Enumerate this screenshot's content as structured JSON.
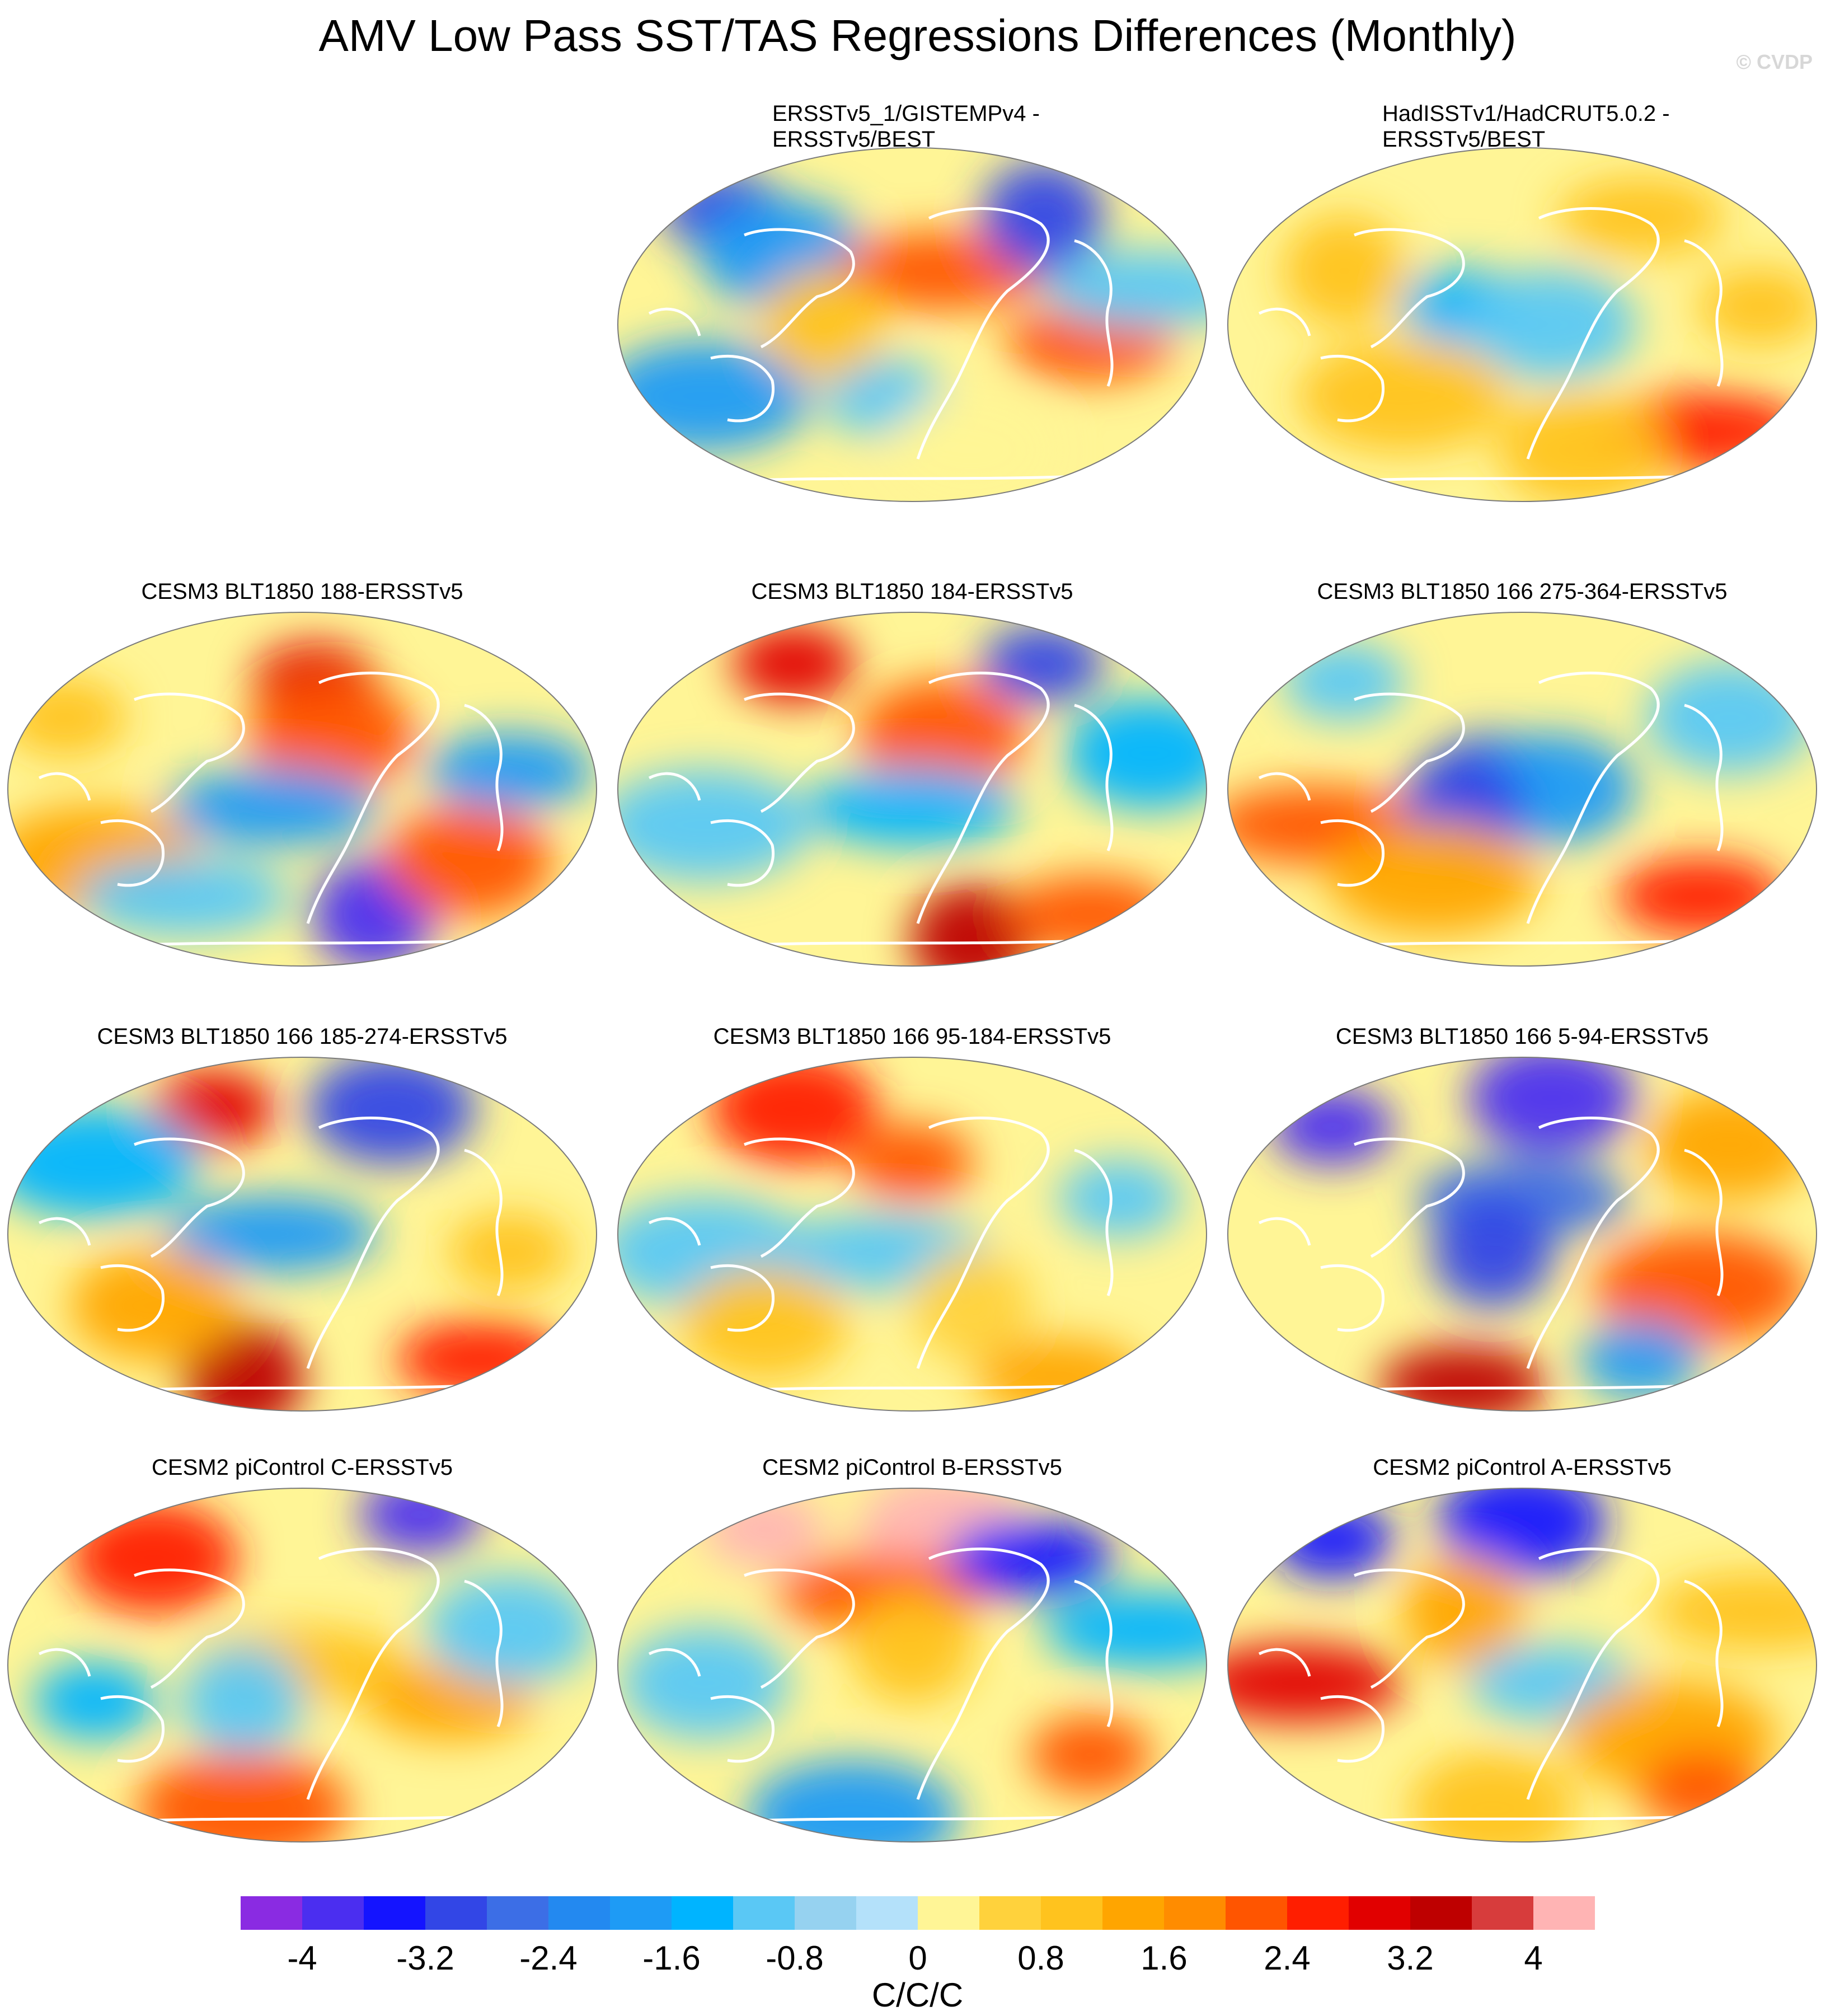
{
  "title": "AMV Low Pass SST/TAS Regressions Differences (Monthly)",
  "credit": "© CVDP",
  "panels": [
    {
      "id": "p1",
      "title_lines": [
        "ERSSTv5_1/GISTEMPv4 -",
        "ERSSTv5/BEST"
      ],
      "row": 0,
      "col": 1,
      "blobs": [
        [
          0.18,
          0.18,
          -3
        ],
        [
          0.28,
          0.3,
          -2
        ],
        [
          0.55,
          0.35,
          2
        ],
        [
          0.72,
          0.2,
          -3
        ],
        [
          0.8,
          0.55,
          2
        ],
        [
          0.15,
          0.7,
          -2
        ],
        [
          0.45,
          0.7,
          -1
        ],
        [
          0.6,
          0.85,
          0
        ],
        [
          0.9,
          0.4,
          -1
        ],
        [
          0.35,
          0.5,
          1
        ]
      ]
    },
    {
      "id": "p2",
      "title_lines": [
        "HadISSTv1/HadCRUT5.0.2 -",
        "ERSSTv5/BEST"
      ],
      "row": 0,
      "col": 2,
      "blobs": [
        [
          0.4,
          0.45,
          -1.5
        ],
        [
          0.55,
          0.5,
          -1
        ],
        [
          0.8,
          0.8,
          2.5
        ],
        [
          0.2,
          0.35,
          1
        ],
        [
          0.7,
          0.2,
          1
        ],
        [
          0.3,
          0.7,
          0.8
        ],
        [
          0.9,
          0.45,
          0.8
        ],
        [
          0.6,
          0.85,
          1
        ]
      ]
    },
    {
      "id": "p3",
      "title_lines": [
        "CESM3 BLT1850 188-ERSSTv5"
      ],
      "row": 1,
      "col": 0,
      "blobs": [
        [
          0.52,
          0.2,
          3
        ],
        [
          0.55,
          0.35,
          2
        ],
        [
          0.45,
          0.55,
          -2
        ],
        [
          0.62,
          0.85,
          -4
        ],
        [
          0.85,
          0.45,
          -2
        ],
        [
          0.15,
          0.7,
          1.5
        ],
        [
          0.1,
          0.3,
          1
        ],
        [
          0.78,
          0.7,
          2
        ],
        [
          0.3,
          0.8,
          -1
        ]
      ]
    },
    {
      "id": "p4",
      "title_lines": [
        "CESM3 BLT1850 184-ERSSTv5"
      ],
      "row": 1,
      "col": 1,
      "blobs": [
        [
          0.3,
          0.15,
          3
        ],
        [
          0.55,
          0.35,
          2
        ],
        [
          0.5,
          0.55,
          -1.5
        ],
        [
          0.6,
          0.92,
          3.5
        ],
        [
          0.8,
          0.85,
          2
        ],
        [
          0.15,
          0.6,
          -1
        ],
        [
          0.72,
          0.15,
          -3
        ],
        [
          0.9,
          0.4,
          -1.5
        ]
      ]
    },
    {
      "id": "p5",
      "title_lines": [
        "CESM3 BLT1850 166 275-364-ERSSTv5"
      ],
      "row": 1,
      "col": 2,
      "blobs": [
        [
          0.45,
          0.45,
          -2.5
        ],
        [
          0.55,
          0.5,
          -2
        ],
        [
          0.15,
          0.6,
          2
        ],
        [
          0.4,
          0.55,
          -3
        ],
        [
          0.8,
          0.8,
          2.5
        ],
        [
          0.35,
          0.75,
          1.5
        ],
        [
          0.2,
          0.2,
          -1
        ],
        [
          0.85,
          0.3,
          -1
        ]
      ]
    },
    {
      "id": "p6",
      "title_lines": [
        "CESM3 BLT1850 166 185-274-ERSSTv5"
      ],
      "row": 2,
      "col": 0,
      "blobs": [
        [
          0.35,
          0.15,
          3
        ],
        [
          0.65,
          0.15,
          -3
        ],
        [
          0.45,
          0.5,
          -2
        ],
        [
          0.4,
          0.9,
          3.5
        ],
        [
          0.8,
          0.85,
          2.5
        ],
        [
          0.15,
          0.3,
          -1.5
        ],
        [
          0.85,
          0.55,
          1
        ],
        [
          0.25,
          0.7,
          1.5
        ]
      ]
    },
    {
      "id": "p7",
      "title_lines": [
        "CESM3 BLT1850 166 95-184-ERSSTv5"
      ],
      "row": 2,
      "col": 1,
      "blobs": [
        [
          0.5,
          0.3,
          2
        ],
        [
          0.3,
          0.15,
          2.5
        ],
        [
          0.45,
          0.55,
          -1
        ],
        [
          0.6,
          0.7,
          0.5
        ],
        [
          0.75,
          0.9,
          1.5
        ],
        [
          0.15,
          0.55,
          -1
        ],
        [
          0.85,
          0.4,
          -1
        ],
        [
          0.25,
          0.75,
          0.8
        ]
      ]
    },
    {
      "id": "p8",
      "title_lines": [
        "CESM3 BLT1850 166 5-94-ERSSTv5"
      ],
      "row": 2,
      "col": 2,
      "blobs": [
        [
          0.18,
          0.2,
          -4
        ],
        [
          0.55,
          0.12,
          -4
        ],
        [
          0.5,
          0.4,
          -2.5
        ],
        [
          0.45,
          0.55,
          -3
        ],
        [
          0.4,
          0.92,
          3.5
        ],
        [
          0.8,
          0.65,
          2
        ],
        [
          0.7,
          0.85,
          -2
        ],
        [
          0.85,
          0.25,
          1.5
        ]
      ]
    },
    {
      "id": "p9",
      "title_lines": [
        "CESM2 piControl C-ERSSTv5"
      ],
      "row": 3,
      "col": 0,
      "blobs": [
        [
          0.7,
          0.08,
          -4
        ],
        [
          0.25,
          0.2,
          2.5
        ],
        [
          0.5,
          0.5,
          1
        ],
        [
          0.4,
          0.6,
          -1
        ],
        [
          0.75,
          0.6,
          1.5
        ],
        [
          0.4,
          0.9,
          2
        ],
        [
          0.15,
          0.6,
          -1.5
        ],
        [
          0.85,
          0.4,
          -1
        ]
      ]
    },
    {
      "id": "p10",
      "title_lines": [
        "CESM2 piControl B-ERSSTv5"
      ],
      "row": 3,
      "col": 1,
      "blobs": [
        [
          0.25,
          0.12,
          4.5
        ],
        [
          0.55,
          0.12,
          4
        ],
        [
          0.45,
          0.3,
          2
        ],
        [
          0.5,
          0.45,
          0.8
        ],
        [
          0.7,
          0.2,
          -3.5
        ],
        [
          0.4,
          0.92,
          -2
        ],
        [
          0.8,
          0.75,
          2
        ],
        [
          0.15,
          0.55,
          -1
        ],
        [
          0.9,
          0.4,
          -1.5
        ]
      ]
    },
    {
      "id": "p11",
      "title_lines": [
        "CESM2 piControl A-ERSSTv5"
      ],
      "row": 3,
      "col": 2,
      "blobs": [
        [
          0.18,
          0.15,
          -3.5
        ],
        [
          0.5,
          0.1,
          -3.5
        ],
        [
          0.12,
          0.55,
          3
        ],
        [
          0.4,
          0.35,
          1.5
        ],
        [
          0.55,
          0.55,
          -1
        ],
        [
          0.75,
          0.7,
          1.5
        ],
        [
          0.8,
          0.85,
          2
        ],
        [
          0.45,
          0.9,
          0.8
        ],
        [
          0.9,
          0.35,
          1
        ]
      ]
    }
  ],
  "colorbar": {
    "units": "C/C/C",
    "levels": [
      -4.4,
      -4,
      -3.6,
      -3.2,
      -2.8,
      -2.4,
      -2,
      -1.6,
      -1.2,
      -0.8,
      -0.4,
      0,
      0.4,
      0.8,
      1.2,
      1.6,
      2,
      2.4,
      2.8,
      3.2,
      3.6,
      4,
      4.4
    ],
    "colors": [
      "#8a2be2",
      "#4b2ef0",
      "#1414ff",
      "#3246e6",
      "#3c6ee6",
      "#2389f0",
      "#1e9bf5",
      "#00b4ff",
      "#5ac8f5",
      "#96d2f0",
      "#b4e1fa",
      "#fff596",
      "#ffd23c",
      "#ffc31e",
      "#ffa500",
      "#ff8c00",
      "#ff5500",
      "#ff1e00",
      "#e10000",
      "#be0000",
      "#d73c3c",
      "#ffb4b4"
    ],
    "tick_labels": [
      {
        "text": "-4",
        "value": -4
      },
      {
        "text": "-3.2",
        "value": -3.2
      },
      {
        "text": "-2.4",
        "value": -2.4
      },
      {
        "text": "-1.6",
        "value": -1.6
      },
      {
        "text": "-0.8",
        "value": -0.8
      },
      {
        "text": "0",
        "value": 0
      },
      {
        "text": "0.8",
        "value": 0.8
      },
      {
        "text": "1.6",
        "value": 1.6
      },
      {
        "text": "2.4",
        "value": 2.4
      },
      {
        "text": "3.2",
        "value": 3.2
      },
      {
        "text": "4",
        "value": 4
      }
    ]
  }
}
